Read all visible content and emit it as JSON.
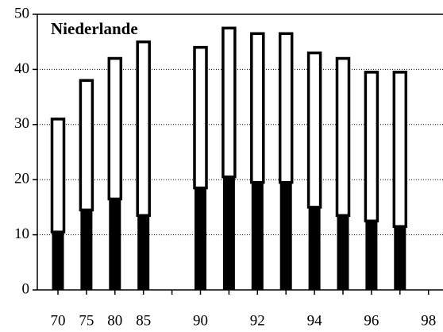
{
  "chart_data": {
    "type": "bar",
    "stacked": true,
    "title": "Niederlande",
    "categories": [
      "70",
      "75",
      "80",
      "85",
      null,
      "90",
      null,
      "92",
      null,
      "94",
      null,
      "96",
      null,
      "98"
    ],
    "series": [
      {
        "color": "#000000",
        "values": [
          10.5,
          14.5,
          16.5,
          13.5,
          null,
          18.5,
          20.5,
          19.5,
          19.5,
          15,
          13.5,
          12.5,
          11.5,
          null
        ]
      },
      {
        "color": "#ffffff",
        "values": [
          20.5,
          23.5,
          25.5,
          31.5,
          null,
          25.5,
          27,
          27,
          27,
          28,
          28.5,
          27,
          28,
          null
        ]
      }
    ],
    "ylim": [
      0,
      50
    ],
    "yticks": [
      0,
      10,
      20,
      30,
      40,
      50
    ],
    "grid": true
  }
}
